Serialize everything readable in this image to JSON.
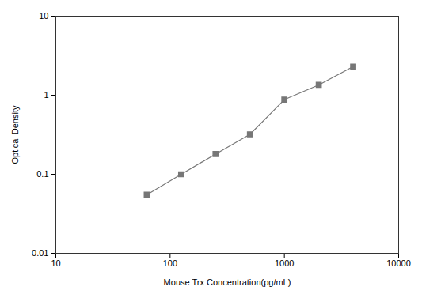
{
  "chart_data": {
    "type": "line",
    "x": [
      62.5,
      125,
      250,
      500,
      1000,
      2000,
      4000
    ],
    "values": [
      0.055,
      0.1,
      0.18,
      0.32,
      0.88,
      1.35,
      2.3
    ],
    "xlabel": "Mouse Trx Concentration(pg/mL)",
    "ylabel": "Optical Density",
    "log": true,
    "xlim": [
      10,
      10000
    ],
    "ylim": [
      0.01,
      10
    ],
    "xticks": [
      10,
      100,
      1000,
      10000
    ],
    "yticks": [
      0.01,
      0.1,
      1,
      10
    ],
    "color": "#777777",
    "marker": "square",
    "grid": false
  }
}
